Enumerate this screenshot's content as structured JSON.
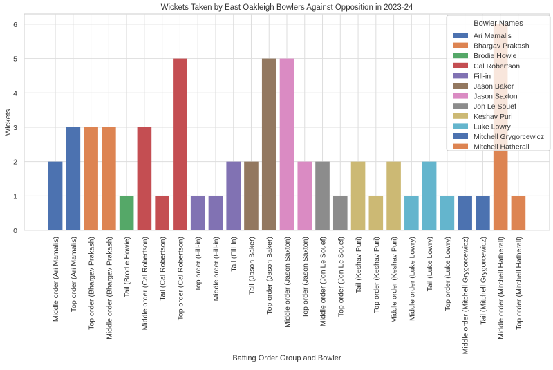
{
  "chart_data": {
    "type": "bar",
    "title": "Wickets Taken by East Oakleigh Bowlers Against Opposition in 2023-24",
    "xlabel": "Batting Order Group and Bowler",
    "ylabel": "Wickets",
    "ylim": [
      0,
      6.3
    ],
    "yticks": [
      "0",
      "1",
      "2",
      "3",
      "4",
      "5",
      "6"
    ],
    "grid": true,
    "legend": {
      "title": "Bowler Names",
      "placement": "top-right",
      "entries": [
        {
          "name": "Ari Mamalis",
          "color": "#4c72b0"
        },
        {
          "name": "Bhargav Prakash",
          "color": "#dd8452"
        },
        {
          "name": "Brodie Howie",
          "color": "#55a868"
        },
        {
          "name": "Cal Robertson",
          "color": "#c44e52"
        },
        {
          "name": "Fill-in",
          "color": "#8172b3"
        },
        {
          "name": "Jason Baker",
          "color": "#937860"
        },
        {
          "name": "Jason Saxton",
          "color": "#da8bc3"
        },
        {
          "name": "Jon Le Souef",
          "color": "#8c8c8c"
        },
        {
          "name": "Keshav Puri",
          "color": "#ccb974"
        },
        {
          "name": "Luke Lowry",
          "color": "#64b5cd"
        },
        {
          "name": "Mitchell Grygorcewicz",
          "color": "#4c72b0"
        },
        {
          "name": "Mitchell Hatherall",
          "color": "#dd8452"
        }
      ]
    },
    "categories": [
      "Middle order (Ari Mamalis)",
      "Top order (Ari Mamalis)",
      "Top order (Bhargav Prakash)",
      "Middle order (Bhargav Prakash)",
      "Tail (Brodie Howie)",
      "Middle order (Cal Robertson)",
      "Tail (Cal Robertson)",
      "Top order (Cal Robertson)",
      "Top order (Fill-in)",
      "Middle order (Fill-in)",
      "Tail (Fill-in)",
      "Tail (Jason Baker)",
      "Top order (Jason Baker)",
      "Middle order (Jason Saxton)",
      "Top order (Jason Saxton)",
      "Middle order (Jon Le Souef)",
      "Top order (Jon Le Souef)",
      "Tail (Keshav Puri)",
      "Top order (Keshav Puri)",
      "Middle order (Keshav Puri)",
      "Middle order (Luke Lowry)",
      "Tail (Luke Lowry)",
      "Top order (Luke Lowry)",
      "Middle order (Mitchell Grygorcewicz)",
      "Tail (Mitchell Grygorcewicz)",
      "Middle order (Mitchell Hatherall)",
      "Top order (Mitchell Hatherall)"
    ],
    "values": [
      2,
      3,
      3,
      3,
      1,
      3,
      1,
      5,
      1,
      1,
      2,
      2,
      5,
      5,
      2,
      2,
      1,
      2,
      1,
      2,
      1,
      2,
      1,
      1,
      1,
      6,
      1
    ],
    "bowler_index": [
      0,
      0,
      1,
      1,
      2,
      3,
      3,
      3,
      4,
      4,
      4,
      5,
      5,
      6,
      6,
      7,
      7,
      8,
      8,
      8,
      9,
      9,
      9,
      10,
      10,
      11,
      11
    ]
  }
}
